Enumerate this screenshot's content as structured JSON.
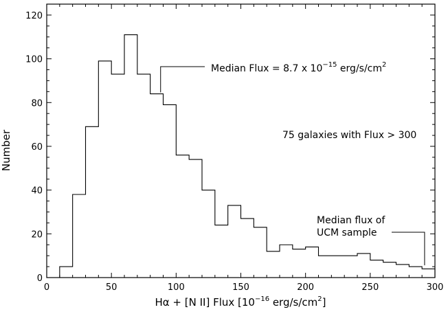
{
  "chart_data": {
    "type": "bar",
    "histogram": true,
    "bin_edges": [
      10,
      20,
      30,
      40,
      50,
      60,
      70,
      80,
      90,
      100,
      110,
      120,
      130,
      140,
      150,
      160,
      170,
      180,
      190,
      200,
      210,
      220,
      230,
      240,
      250,
      260,
      270,
      280,
      290,
      300
    ],
    "values": [
      5,
      38,
      69,
      99,
      93,
      111,
      93,
      84,
      79,
      56,
      54,
      40,
      24,
      33,
      27,
      23,
      12,
      15,
      13,
      14,
      10,
      10,
      10,
      11,
      8,
      7,
      6,
      5,
      4
    ],
    "xlim": [
      0,
      300
    ],
    "ylim": [
      0,
      125
    ],
    "x_ticks": [
      0,
      50,
      100,
      150,
      200,
      250,
      300
    ],
    "y_ticks": [
      0,
      20,
      40,
      60,
      80,
      100,
      120
    ],
    "xlabel": {
      "prefix": "Hα + [N II] Flux [10",
      "exp": "−16",
      "suffix": " erg/s/cm",
      "exp2": "2",
      "close": "]"
    },
    "ylabel": "Number",
    "annotations": {
      "median_flux": {
        "prefix": "Median Flux = 8.7 x 10",
        "exp": "−15",
        "suffix": " erg/s/cm",
        "exp2": "2",
        "x_data": 88
      },
      "galaxies_note": "75 galaxies with Flux > 300",
      "ucm_line1": "Median flux of",
      "ucm_line2": "UCM sample",
      "ucm_x_data": 292
    },
    "grid": false,
    "legend": "none"
  }
}
